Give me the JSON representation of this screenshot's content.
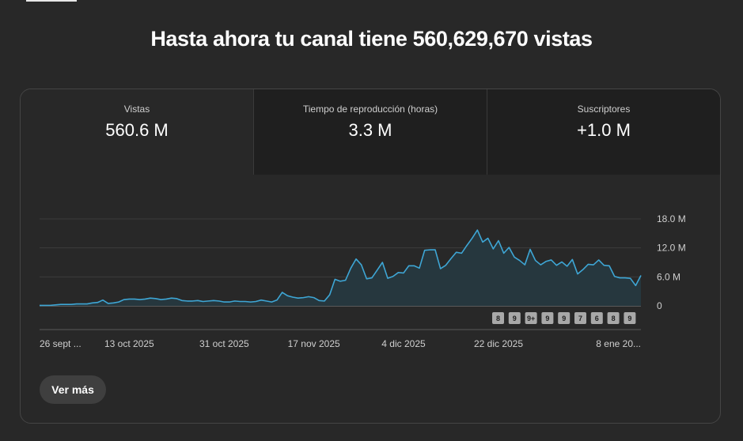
{
  "headline": "Hasta ahora tu canal tiene 560,629,670 vistas",
  "metrics": [
    {
      "label": "Vistas",
      "value": "560.6 M"
    },
    {
      "label": "Tiempo de reproducción (horas)",
      "value": "3.3 M"
    },
    {
      "label": "Suscriptores",
      "value": "+1.0 M"
    }
  ],
  "more_button": "Ver más",
  "colors": {
    "line": "#3ea6d5",
    "fill": "#26373e",
    "background": "#282828"
  },
  "chart_data": {
    "type": "area",
    "title": "",
    "xlabel": "",
    "ylabel": "",
    "ylim": [
      0,
      18000000
    ],
    "grid": true,
    "y_ticks": [
      {
        "value": 18000000,
        "label": "18.0 M"
      },
      {
        "value": 12000000,
        "label": "12.0 M"
      },
      {
        "value": 6000000,
        "label": "6.0 M"
      },
      {
        "value": 0,
        "label": "0"
      }
    ],
    "x_labels": [
      {
        "index": 0,
        "label": "26 sept ..."
      },
      {
        "index": 17,
        "label": "13 oct 2025"
      },
      {
        "index": 35,
        "label": "31 oct 2025"
      },
      {
        "index": 52,
        "label": "17 nov 2025"
      },
      {
        "index": 69,
        "label": "4 dic 2025"
      },
      {
        "index": 87,
        "label": "22 dic 2025"
      },
      {
        "index": 104,
        "label": "8 ene 20..."
      }
    ],
    "series": [
      {
        "values": [
          0.1,
          0.1,
          0.1,
          0.2,
          0.3,
          0.3,
          0.3,
          0.4,
          0.4,
          0.4,
          0.6,
          0.7,
          1.2,
          0.5,
          0.6,
          0.8,
          1.3,
          1.4,
          1.4,
          1.3,
          1.4,
          1.6,
          1.5,
          1.3,
          1.4,
          1.6,
          1.5,
          1.1,
          1.0,
          1.0,
          1.1,
          0.9,
          1.0,
          1.1,
          1.0,
          0.8,
          0.8,
          1.0,
          0.9,
          0.9,
          0.8,
          0.9,
          1.2,
          1.0,
          0.8,
          1.2,
          2.8,
          2.1,
          1.8,
          1.6,
          1.7,
          1.9,
          1.7,
          1.1,
          1.0,
          2.3,
          5.5,
          5.1,
          5.3,
          7.8,
          9.7,
          8.5,
          5.6,
          5.8,
          7.4,
          9.0,
          5.7,
          6.1,
          6.9,
          6.8,
          8.3,
          8.3,
          7.8,
          11.5,
          11.6,
          11.6,
          7.7,
          8.4,
          9.8,
          11.1,
          10.9,
          12.5,
          14.0,
          15.7,
          13.2,
          14.0,
          11.8,
          13.5,
          10.9,
          12.1,
          10.1,
          9.4,
          8.5,
          11.7,
          9.4,
          8.5,
          9.2,
          9.5,
          8.4,
          9.1,
          8.2,
          9.6,
          6.6,
          7.5,
          8.6,
          8.5,
          9.5,
          8.4,
          8.3,
          6.1,
          5.8,
          5.8,
          5.7,
          4.2,
          6.3
        ]
      }
    ],
    "markers": [
      "8",
      "9",
      "9+",
      "9",
      "9",
      "7",
      "6",
      "8",
      "9"
    ]
  }
}
